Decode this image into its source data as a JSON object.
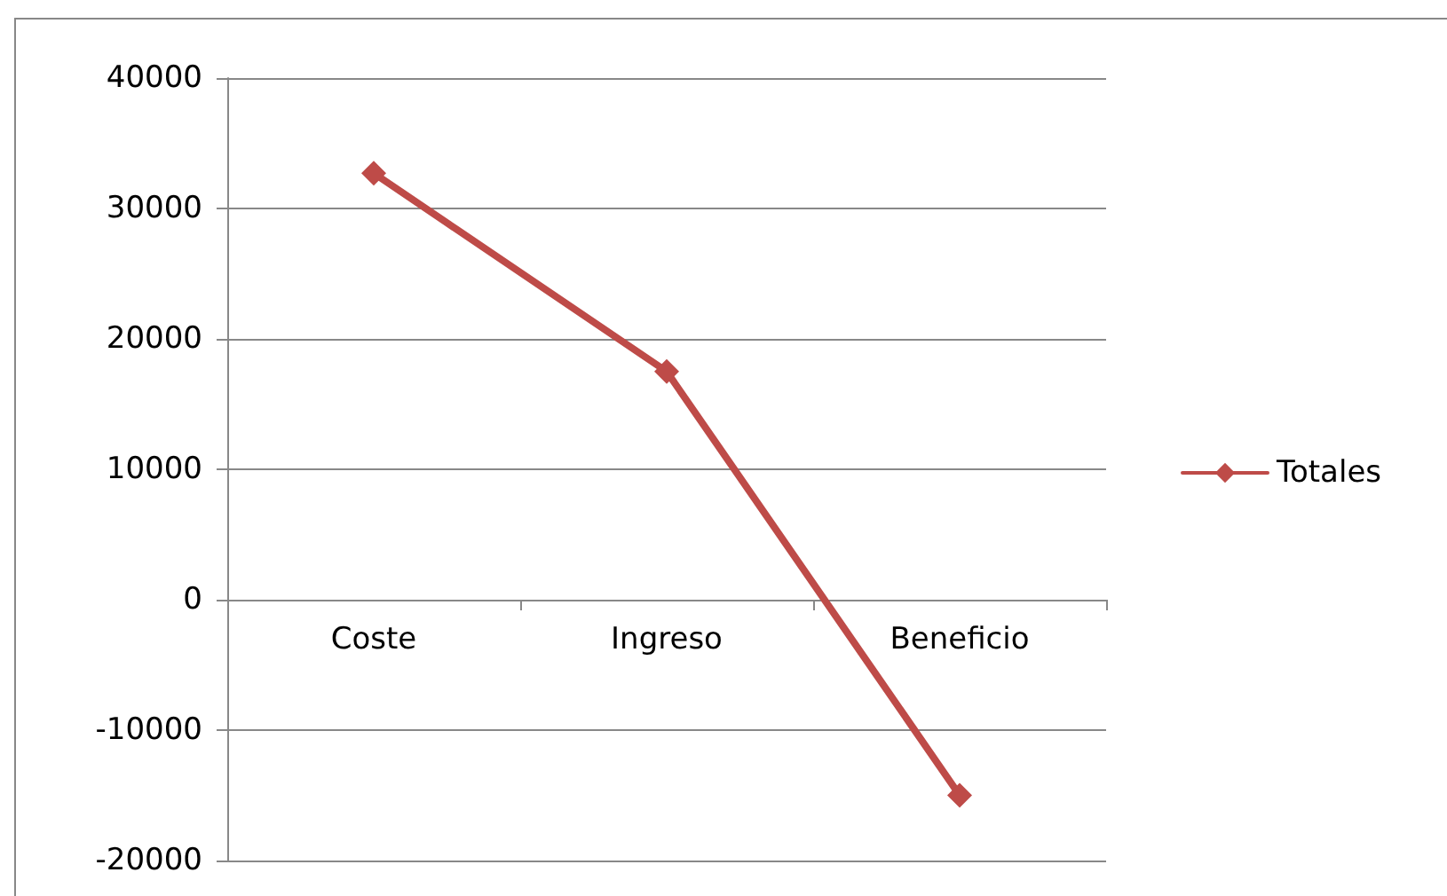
{
  "chart_data": {
    "type": "line",
    "categories": [
      "Coste",
      "Ingreso",
      "Beneficio"
    ],
    "series": [
      {
        "name": "Totales",
        "color": "#be4b48",
        "values": [
          32700,
          17500,
          -15000
        ]
      }
    ],
    "ylim": [
      -20000,
      40000
    ],
    "yticks": [
      -20000,
      -10000,
      0,
      10000,
      20000,
      30000,
      40000
    ],
    "grid": "y",
    "legend": "right",
    "marker": "diamond",
    "line_style": "solid"
  }
}
